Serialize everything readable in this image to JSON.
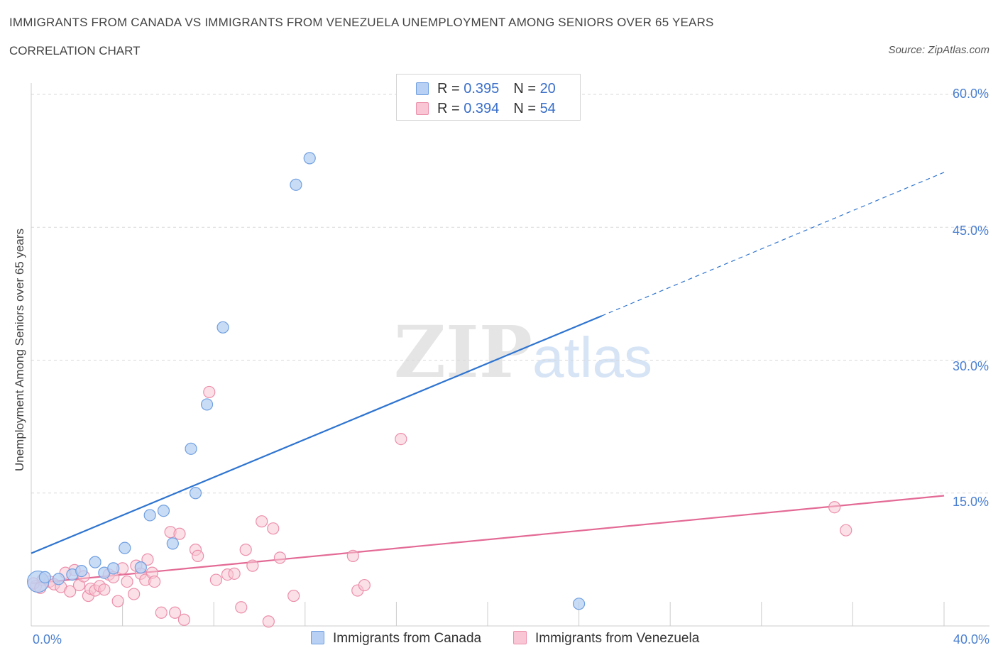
{
  "title": "IMMIGRANTS FROM CANADA VS IMMIGRANTS FROM VENEZUELA UNEMPLOYMENT AMONG SENIORS OVER 65 YEARS",
  "subtitle": "CORRELATION CHART",
  "source": "Source: ZipAtlas.com",
  "watermark": {
    "zip": "ZIP",
    "atlas": "atlas"
  },
  "legend_top": {
    "canada": {
      "r_label": "R = ",
      "r_value": "0.395",
      "n_label": "N = ",
      "n_value": "20"
    },
    "venezuela": {
      "r_label": "R = ",
      "r_value": "0.394",
      "n_label": "N = ",
      "n_value": "54"
    }
  },
  "colors": {
    "canada_fill": "#b7d0f3",
    "canada_stroke": "#6f9fe0",
    "canada_line": "#2e74d0",
    "venezuela_fill": "#f8c6d4",
    "venezuela_stroke": "#ec8fab",
    "venezuela_line": "#e36a95",
    "grid": "#d9d9d9",
    "axis_text": "#4a7fd0"
  },
  "chart_data": {
    "type": "scatter",
    "title": "IMMIGRANTS FROM CANADA VS IMMIGRANTS FROM VENEZUELA UNEMPLOYMENT AMONG SENIORS OVER 65 YEARS",
    "xlabel": "",
    "ylabel": "Unemployment Among Seniors over 65 years",
    "xlim": [
      0,
      40
    ],
    "ylim": [
      0,
      60
    ],
    "x_tick_labels": [
      "0.0%",
      "40.0%"
    ],
    "y_ticks": [
      15,
      30,
      45,
      60
    ],
    "y_tick_labels": [
      "15.0%",
      "30.0%",
      "45.0%",
      "60.0%"
    ],
    "legend_position": "bottom-center",
    "series": [
      {
        "name": "Immigrants from Canada",
        "points": [
          {
            "x": 0.3,
            "y": 5.0,
            "big": true
          },
          {
            "x": 0.6,
            "y": 5.5
          },
          {
            "x": 1.2,
            "y": 5.3
          },
          {
            "x": 1.8,
            "y": 5.8
          },
          {
            "x": 2.2,
            "y": 6.2
          },
          {
            "x": 2.8,
            "y": 7.2
          },
          {
            "x": 3.2,
            "y": 6.0
          },
          {
            "x": 3.6,
            "y": 6.5
          },
          {
            "x": 4.1,
            "y": 8.8
          },
          {
            "x": 4.8,
            "y": 6.6
          },
          {
            "x": 5.2,
            "y": 12.5
          },
          {
            "x": 5.8,
            "y": 13.0
          },
          {
            "x": 6.2,
            "y": 9.3
          },
          {
            "x": 7.0,
            "y": 20.0
          },
          {
            "x": 7.2,
            "y": 15.0
          },
          {
            "x": 7.7,
            "y": 25.0
          },
          {
            "x": 8.4,
            "y": 33.7
          },
          {
            "x": 11.6,
            "y": 49.8
          },
          {
            "x": 12.2,
            "y": 52.8
          },
          {
            "x": 24.0,
            "y": 2.5
          }
        ],
        "trend": {
          "x0": 0,
          "y0": 8.2,
          "x1": 25,
          "y1": 35.0,
          "x_dash_end": 40,
          "y_dash_end": 51.2
        }
      },
      {
        "name": "Immigrants from Venezuela",
        "points": [
          {
            "x": 0.2,
            "y": 4.5
          },
          {
            "x": 0.5,
            "y": 5.2
          },
          {
            "x": 0.8,
            "y": 5.0
          },
          {
            "x": 1.0,
            "y": 4.7
          },
          {
            "x": 1.3,
            "y": 4.4
          },
          {
            "x": 1.5,
            "y": 6.0
          },
          {
            "x": 1.7,
            "y": 3.9
          },
          {
            "x": 1.9,
            "y": 6.3
          },
          {
            "x": 2.1,
            "y": 4.6
          },
          {
            "x": 2.3,
            "y": 5.6
          },
          {
            "x": 2.5,
            "y": 3.4
          },
          {
            "x": 2.6,
            "y": 4.2
          },
          {
            "x": 2.8,
            "y": 4.0
          },
          {
            "x": 3.0,
            "y": 4.5
          },
          {
            "x": 3.2,
            "y": 4.1
          },
          {
            "x": 3.4,
            "y": 5.8
          },
          {
            "x": 3.6,
            "y": 5.5
          },
          {
            "x": 3.8,
            "y": 2.8
          },
          {
            "x": 4.0,
            "y": 6.5
          },
          {
            "x": 4.2,
            "y": 5.0
          },
          {
            "x": 4.5,
            "y": 3.6
          },
          {
            "x": 4.6,
            "y": 6.8
          },
          {
            "x": 4.8,
            "y": 5.9
          },
          {
            "x": 5.0,
            "y": 5.2
          },
          {
            "x": 5.1,
            "y": 7.5
          },
          {
            "x": 5.3,
            "y": 6.0
          },
          {
            "x": 5.4,
            "y": 5.0
          },
          {
            "x": 5.7,
            "y": 1.5
          },
          {
            "x": 6.1,
            "y": 10.6
          },
          {
            "x": 6.3,
            "y": 1.5
          },
          {
            "x": 6.5,
            "y": 10.4
          },
          {
            "x": 6.7,
            "y": 0.7
          },
          {
            "x": 7.2,
            "y": 8.6
          },
          {
            "x": 7.3,
            "y": 7.9
          },
          {
            "x": 7.8,
            "y": 26.4
          },
          {
            "x": 8.1,
            "y": 5.2
          },
          {
            "x": 8.6,
            "y": 5.8
          },
          {
            "x": 8.9,
            "y": 5.9
          },
          {
            "x": 9.2,
            "y": 2.1
          },
          {
            "x": 9.4,
            "y": 8.6
          },
          {
            "x": 9.7,
            "y": 6.8
          },
          {
            "x": 10.1,
            "y": 11.8
          },
          {
            "x": 10.4,
            "y": 0.5
          },
          {
            "x": 10.6,
            "y": 11.0
          },
          {
            "x": 10.9,
            "y": 7.7
          },
          {
            "x": 11.5,
            "y": 3.4
          },
          {
            "x": 14.1,
            "y": 7.9
          },
          {
            "x": 14.3,
            "y": 4.0
          },
          {
            "x": 14.6,
            "y": 4.6
          },
          {
            "x": 16.2,
            "y": 21.1
          },
          {
            "x": 35.2,
            "y": 13.4
          },
          {
            "x": 35.7,
            "y": 10.8
          },
          {
            "x": 0.1,
            "y": 4.8
          },
          {
            "x": 0.4,
            "y": 4.3
          }
        ],
        "trend": {
          "x0": 0,
          "y0": 4.8,
          "x1": 40,
          "y1": 14.7
        }
      }
    ]
  },
  "bottom_legend": {
    "canada": "Immigrants from Canada",
    "venezuela": "Immigrants from Venezuela"
  }
}
